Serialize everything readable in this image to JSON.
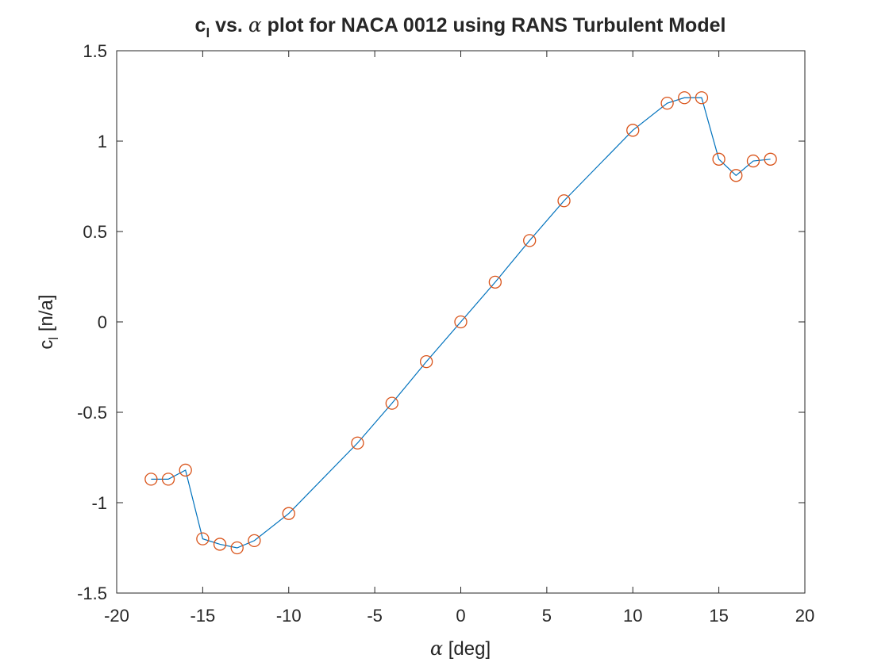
{
  "chart_data": {
    "type": "line",
    "title": {
      "prefix": "c",
      "subscript": "l",
      "middle": " vs. ",
      "symbol": "α",
      "suffix": " plot for NACA 0012 using RANS Turbulent Model"
    },
    "xlabel": {
      "symbol": "α",
      "text": " [deg]"
    },
    "ylabel": {
      "main": "c",
      "subscript": "l",
      "text": " [n/a]"
    },
    "xlim": [
      -20,
      20
    ],
    "ylim": [
      -1.5,
      1.5
    ],
    "xticks": [
      -20,
      -15,
      -10,
      -5,
      0,
      5,
      10,
      15,
      20
    ],
    "yticks": [
      -1.5,
      -1,
      -0.5,
      0,
      0.5,
      1,
      1.5
    ],
    "grid": false,
    "x": [
      -18,
      -17,
      -16,
      -15,
      -14,
      -13,
      -12,
      -10,
      -6,
      -4,
      -2,
      0,
      2,
      4,
      6,
      10,
      12,
      13,
      14,
      15,
      16,
      17,
      18
    ],
    "series": [
      {
        "values": [
          -0.87,
          -0.87,
          -0.82,
          -1.2,
          -1.23,
          -1.25,
          -1.21,
          -1.06,
          -0.67,
          -0.45,
          -0.22,
          0.0,
          0.22,
          0.45,
          0.67,
          1.06,
          1.21,
          1.24,
          1.24,
          0.9,
          0.81,
          0.89,
          0.9
        ],
        "line_color": "#0072BD",
        "marker_color": "#D95319",
        "marker": "circle"
      }
    ]
  }
}
